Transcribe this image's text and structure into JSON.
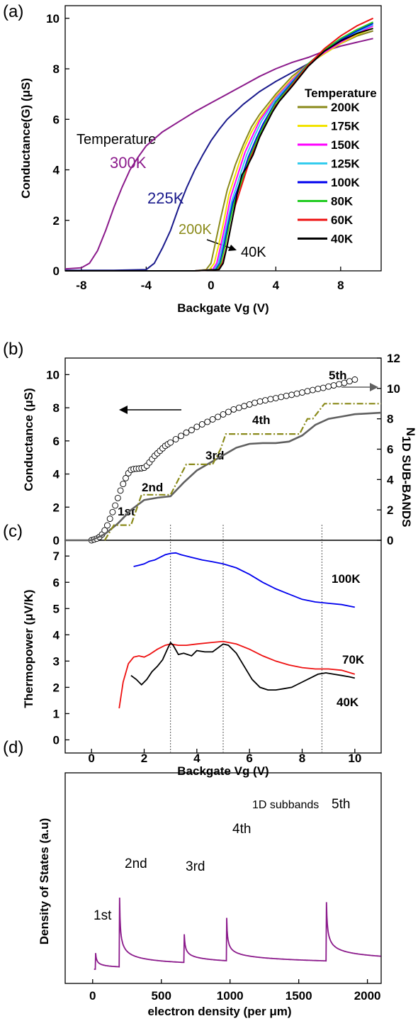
{
  "chart_data": [
    {
      "panel": "(a)",
      "type": "line",
      "xlabel": "Backgate Vg (V)",
      "ylabel": "Conductance(G) (μS)",
      "xlim": [
        -9,
        10.5
      ],
      "ylim": [
        0,
        10.5
      ],
      "xticks": [
        -8,
        -4,
        0,
        4,
        8
      ],
      "yticks": [
        0,
        2,
        4,
        6,
        8,
        10
      ],
      "legend_title": "Temperature",
      "legend_position": "right-middle",
      "annotations": [
        "Temperature",
        "300K",
        "225K",
        "200K",
        "40K"
      ],
      "series": [
        {
          "name": "300K",
          "color": "#8b1a8b",
          "x": [
            -9,
            -8,
            -7.5,
            -7,
            -6.5,
            -6,
            -5.5,
            -5,
            -4.5,
            -4,
            -3,
            -2,
            -1,
            0,
            1,
            2,
            3,
            4,
            5,
            6,
            7,
            8,
            9,
            10
          ],
          "y": [
            0.08,
            0.12,
            0.3,
            0.8,
            1.6,
            2.5,
            3.3,
            4.0,
            4.5,
            4.95,
            5.5,
            5.9,
            6.3,
            6.65,
            7.0,
            7.35,
            7.7,
            8.0,
            8.25,
            8.45,
            8.7,
            8.9,
            9.05,
            9.2
          ]
        },
        {
          "name": "225K",
          "color": "#1a1a8c",
          "x": [
            -9,
            -6,
            -4,
            -3.5,
            -3,
            -2.5,
            -2,
            -1.5,
            -1,
            -0.5,
            0,
            0.5,
            1,
            2,
            3,
            4,
            5,
            6,
            7,
            8,
            9,
            10
          ],
          "y": [
            0.02,
            0.02,
            0.05,
            0.3,
            0.9,
            1.6,
            2.5,
            3.3,
            4.0,
            4.6,
            5.15,
            5.6,
            6.0,
            6.6,
            7.1,
            7.5,
            7.85,
            8.2,
            8.6,
            9.0,
            9.3,
            9.5
          ]
        },
        {
          "name": "200K",
          "color": "#8a8a1a",
          "x": [
            -9,
            -1,
            -0.3,
            0,
            0.3,
            0.6,
            1,
            1.5,
            2,
            2.5,
            3,
            4,
            5,
            6,
            7,
            8,
            9,
            10
          ],
          "y": [
            0.0,
            0.0,
            0.05,
            0.3,
            1.2,
            2.1,
            3.2,
            4.2,
            5.0,
            5.7,
            6.2,
            7.0,
            7.7,
            8.2,
            8.6,
            9.0,
            9.3,
            9.5
          ]
        },
        {
          "name": "175K",
          "color": "#f2e300",
          "x": [
            -9,
            -1,
            -0.1,
            0.2,
            0.5,
            0.8,
            1.1,
            1.6,
            2,
            2.5,
            3,
            4,
            5,
            6,
            7,
            8,
            9,
            10
          ],
          "y": [
            0.0,
            0.0,
            0.05,
            0.3,
            1.1,
            2.0,
            3.0,
            4.0,
            4.8,
            5.5,
            6.05,
            6.9,
            7.6,
            8.2,
            8.6,
            9.0,
            9.35,
            9.6
          ]
        },
        {
          "name": "150K",
          "color": "#ff00ff",
          "x": [
            -9,
            -1,
            0.1,
            0.35,
            0.6,
            0.9,
            1.2,
            1.7,
            2.1,
            2.6,
            3,
            4,
            5,
            6,
            7,
            8,
            9,
            10
          ],
          "y": [
            0.0,
            0.0,
            0.05,
            0.3,
            1.0,
            1.9,
            2.9,
            3.9,
            4.7,
            5.4,
            5.95,
            6.85,
            7.55,
            8.2,
            8.65,
            9.05,
            9.4,
            9.7
          ]
        },
        {
          "name": "125K",
          "color": "#33ccee",
          "x": [
            -9,
            -1,
            0.2,
            0.45,
            0.7,
            1.0,
            1.3,
            1.8,
            2.2,
            2.7,
            3.1,
            4,
            5,
            6,
            7,
            8,
            9,
            10
          ],
          "y": [
            0.0,
            0.0,
            0.05,
            0.3,
            1.0,
            1.9,
            2.8,
            3.8,
            4.6,
            5.35,
            5.9,
            6.8,
            7.5,
            8.2,
            8.7,
            9.1,
            9.45,
            9.75
          ]
        },
        {
          "name": "100K",
          "color": "#0000ee",
          "x": [
            -9,
            -1,
            0.3,
            0.55,
            0.8,
            1.05,
            1.35,
            1.9,
            2.3,
            2.8,
            3.2,
            4,
            5,
            6,
            7,
            8,
            9,
            10
          ],
          "y": [
            0.0,
            0.0,
            0.05,
            0.3,
            1.0,
            1.8,
            2.7,
            3.7,
            4.5,
            5.25,
            5.8,
            6.7,
            7.45,
            8.2,
            8.7,
            9.15,
            9.5,
            9.8
          ]
        },
        {
          "name": "80K",
          "color": "#22cc22",
          "x": [
            -9,
            -1,
            0.35,
            0.6,
            0.85,
            1.1,
            1.4,
            1.95,
            2.35,
            2.85,
            3.25,
            4,
            5,
            6,
            7,
            8,
            9,
            10
          ],
          "y": [
            0.0,
            0.0,
            0.05,
            0.3,
            0.95,
            1.75,
            2.65,
            3.65,
            4.45,
            5.2,
            5.75,
            6.65,
            7.4,
            8.2,
            8.75,
            9.2,
            9.55,
            9.85
          ]
        },
        {
          "name": "60K",
          "color": "#ee1111",
          "x": [
            -9,
            -1,
            0.45,
            0.7,
            0.95,
            1.2,
            1.5,
            2.0,
            2.4,
            2.9,
            3.3,
            4,
            5,
            6,
            7,
            8,
            9,
            10
          ],
          "y": [
            0.0,
            0.0,
            0.05,
            0.3,
            0.9,
            1.7,
            2.6,
            3.6,
            4.4,
            5.15,
            5.7,
            6.55,
            7.35,
            8.15,
            8.8,
            9.3,
            9.7,
            10.0
          ]
        },
        {
          "name": "40K",
          "color": "#000000",
          "x": [
            -9,
            -1,
            0.5,
            0.75,
            1.0,
            1.3,
            1.6,
            1.9,
            2.2,
            2.6,
            3.0,
            3.4,
            3.8,
            4.2,
            5,
            6,
            7,
            8,
            9,
            10
          ],
          "y": [
            0.0,
            0.0,
            0.05,
            0.3,
            1.0,
            2.0,
            3.0,
            3.8,
            4.1,
            4.6,
            5.3,
            5.8,
            6.3,
            6.7,
            7.3,
            8.1,
            8.7,
            9.1,
            9.4,
            9.6
          ]
        }
      ]
    },
    {
      "panel": "(b)",
      "type": "line",
      "xlim": [
        -1,
        11
      ],
      "ylim": [
        0,
        11
      ],
      "ylim_right": [
        0,
        12
      ],
      "ylabel": "Conductance (μS)",
      "ylabel_right": "N1D SUB-BANDS",
      "yticks": [
        0,
        2,
        4,
        6,
        8,
        10
      ],
      "yticks_right": [
        0,
        2,
        4,
        6,
        8,
        10,
        12
      ],
      "labels": [
        "1st",
        "2nd",
        "3rd",
        "4th",
        "5th"
      ],
      "vlines": [
        3.0,
        5.0,
        8.75
      ],
      "series": [
        {
          "name": "conductance",
          "marker": "circle",
          "color": "#000000",
          "x": [
            0.0,
            0.1,
            0.2,
            0.3,
            0.4,
            0.5,
            0.6,
            0.7,
            0.8,
            0.9,
            1.0,
            1.1,
            1.2,
            1.3,
            1.4,
            1.5,
            1.6,
            1.7,
            1.8,
            1.9,
            2.0,
            2.1,
            2.2,
            2.3,
            2.4,
            2.5,
            2.6,
            2.7,
            2.8,
            2.9,
            3.0,
            3.2,
            3.4,
            3.6,
            3.8,
            4.0,
            4.2,
            4.4,
            4.6,
            4.8,
            5.0,
            5.2,
            5.4,
            5.6,
            5.8,
            6.0,
            6.2,
            6.4,
            6.6,
            6.8,
            7.0,
            7.2,
            7.4,
            7.6,
            7.8,
            8.0,
            8.2,
            8.4,
            8.6,
            8.8,
            9.0,
            9.2,
            9.4,
            9.6,
            9.8,
            10.0
          ],
          "y": [
            0.0,
            0.05,
            0.1,
            0.2,
            0.35,
            0.6,
            0.9,
            1.3,
            1.7,
            2.1,
            2.55,
            3.0,
            3.4,
            3.75,
            4.05,
            4.25,
            4.3,
            4.32,
            4.33,
            4.35,
            4.38,
            4.5,
            4.7,
            4.9,
            5.1,
            5.25,
            5.4,
            5.55,
            5.7,
            5.8,
            5.9,
            6.1,
            6.3,
            6.5,
            6.65,
            6.85,
            7.0,
            7.15,
            7.3,
            7.45,
            7.6,
            7.75,
            7.9,
            8.0,
            8.1,
            8.2,
            8.3,
            8.38,
            8.45,
            8.52,
            8.58,
            8.65,
            8.72,
            8.78,
            8.85,
            8.92,
            9.0,
            9.07,
            9.14,
            9.2,
            9.28,
            9.35,
            9.42,
            9.5,
            9.6,
            9.7
          ]
        },
        {
          "name": "subbands-smooth",
          "color": "#606060",
          "x": [
            -1,
            0,
            0.5,
            1,
            1.5,
            2,
            2.5,
            3,
            3.5,
            4,
            4.5,
            5,
            5.5,
            6,
            6.5,
            7,
            7.5,
            8,
            8.5,
            9,
            9.5,
            10,
            11
          ],
          "y": [
            0,
            0,
            0.4,
            1.1,
            2.0,
            2.65,
            2.8,
            2.9,
            3.8,
            4.6,
            5.1,
            5.6,
            6.1,
            6.35,
            6.4,
            6.4,
            6.5,
            6.9,
            7.6,
            8.0,
            8.15,
            8.3,
            8.4
          ]
        },
        {
          "name": "subbands-step",
          "color": "#8a8a1a",
          "x": [
            0.5,
            0.85,
            1.0,
            1.5,
            1.9,
            2.1,
            3.0,
            3.3,
            3.6,
            3.7,
            4.6,
            4.9,
            5.1,
            5.4,
            7.9,
            8.2,
            8.4,
            8.85,
            11
          ],
          "y": [
            0,
            1.0,
            1.0,
            1.0,
            3.0,
            3.0,
            3.0,
            4.0,
            5.0,
            5.0,
            5.0,
            6.0,
            7.0,
            7.0,
            7.0,
            8.0,
            8.0,
            9.0,
            9.0
          ]
        }
      ]
    },
    {
      "panel": "(c)",
      "type": "line",
      "xlabel": "Backgate Vg (V)",
      "ylabel": "Thermopower (μV/K)",
      "xlim": [
        -1,
        11
      ],
      "ylim": [
        -0.5,
        7.6
      ],
      "xticks": [
        0,
        2,
        4,
        6,
        8,
        10
      ],
      "yticks": [
        0,
        1,
        2,
        3,
        4,
        5,
        6,
        7
      ],
      "series": [
        {
          "name": "100K",
          "color": "#0000ee",
          "x": [
            1.6,
            1.8,
            2.0,
            2.2,
            2.4,
            2.6,
            2.8,
            3.0,
            3.2,
            3.4,
            3.6,
            3.8,
            4.0,
            4.2,
            4.5,
            5.0,
            5.5,
            6.0,
            6.5,
            7.0,
            7.5,
            8.0,
            8.5,
            9.0,
            9.5,
            10.0
          ],
          "y": [
            6.6,
            6.65,
            6.7,
            6.8,
            6.85,
            6.95,
            7.05,
            7.1,
            7.12,
            7.05,
            7.0,
            6.95,
            6.9,
            6.85,
            6.8,
            6.7,
            6.55,
            6.3,
            6.0,
            5.75,
            5.55,
            5.35,
            5.25,
            5.2,
            5.15,
            5.05
          ]
        },
        {
          "name": "70K",
          "color": "#ee1111",
          "x": [
            1.05,
            1.2,
            1.4,
            1.6,
            1.8,
            2.0,
            2.2,
            2.5,
            2.8,
            3.0,
            3.3,
            3.6,
            4.0,
            4.5,
            5.0,
            5.5,
            6.0,
            6.5,
            7.0,
            7.5,
            8.0,
            8.5,
            9.0,
            9.5,
            10.0
          ],
          "y": [
            1.2,
            2.2,
            2.9,
            3.15,
            3.2,
            3.15,
            3.25,
            3.45,
            3.6,
            3.65,
            3.6,
            3.6,
            3.65,
            3.7,
            3.75,
            3.65,
            3.45,
            3.2,
            3.0,
            2.85,
            2.75,
            2.7,
            2.7,
            2.65,
            2.5
          ]
        },
        {
          "name": "40K",
          "color": "#000000",
          "x": [
            1.5,
            1.7,
            1.9,
            2.1,
            2.3,
            2.5,
            2.7,
            2.9,
            3.0,
            3.1,
            3.3,
            3.5,
            3.8,
            4.0,
            4.3,
            4.6,
            5.0,
            5.2,
            5.5,
            5.8,
            6.1,
            6.4,
            6.7,
            7.0,
            7.3,
            7.6,
            8.0,
            8.3,
            8.6,
            8.9,
            9.2,
            9.5,
            9.8,
            10.0
          ],
          "y": [
            2.45,
            2.3,
            2.1,
            2.3,
            2.6,
            2.8,
            3.05,
            3.5,
            3.7,
            3.6,
            3.25,
            3.3,
            3.2,
            3.4,
            3.35,
            3.35,
            3.65,
            3.6,
            3.3,
            2.8,
            2.3,
            2.0,
            1.9,
            1.9,
            1.95,
            2.0,
            2.2,
            2.35,
            2.5,
            2.55,
            2.5,
            2.45,
            2.4,
            2.35
          ]
        }
      ],
      "vlines": [
        3.0,
        5.0,
        8.75
      ]
    },
    {
      "panel": "(d)",
      "type": "line",
      "xlabel": "electron density (per μm)",
      "ylabel": "Density of States (a.u)",
      "xlim": [
        -200,
        2100
      ],
      "xticks": [
        0,
        500,
        1000,
        1500,
        2000
      ],
      "annotations": [
        "1st",
        "2nd",
        "3rd",
        "4th",
        "1D subbands",
        "5th"
      ],
      "peaks": [
        20,
        195,
        665,
        975,
        1700
      ],
      "peak_heights": [
        0.27,
        1.0,
        0.47,
        0.62,
        0.98
      ],
      "series": [
        {
          "name": "DOS",
          "color": "#8b1a8b"
        }
      ]
    }
  ],
  "labels": {
    "panel_a": "(a)",
    "panel_b": "(b)",
    "panel_c": "(c)",
    "panel_d": "(d)",
    "a_xlabel": "Backgate Vg (V)",
    "a_ylabel": "Conductance(G) (μS)",
    "a_legend_title": "Temperature",
    "a_ann_temperature": "Temperature",
    "a_ann_300": "300K",
    "a_ann_225": "225K",
    "a_ann_200": "200K",
    "a_ann_40": "40K",
    "b_ylabel": "Conductance (μS)",
    "b_ylabel_right_main": "N",
    "b_ylabel_right_sub": "1D SUB-BANDS",
    "b_1st": "1st",
    "b_2nd": "2nd",
    "b_3rd": "3rd",
    "b_4th": "4th",
    "b_5th": "5th",
    "c_xlabel": "Backgate Vg (V)",
    "c_ylabel": "Thermopower (μV/K)",
    "c_100": "100K",
    "c_70": "70K",
    "c_40": "40K",
    "d_xlabel": "electron density (per μm)",
    "d_ylabel": "Density of States (a.u)",
    "d_1st": "1st",
    "d_2nd": "2nd",
    "d_3rd": "3rd",
    "d_4th": "4th",
    "d_5th": "5th",
    "d_subbands": "1D subbands"
  },
  "colors": {
    "axis": "#000000",
    "grey_arrow": "#606060",
    "dotted": "#555555"
  }
}
